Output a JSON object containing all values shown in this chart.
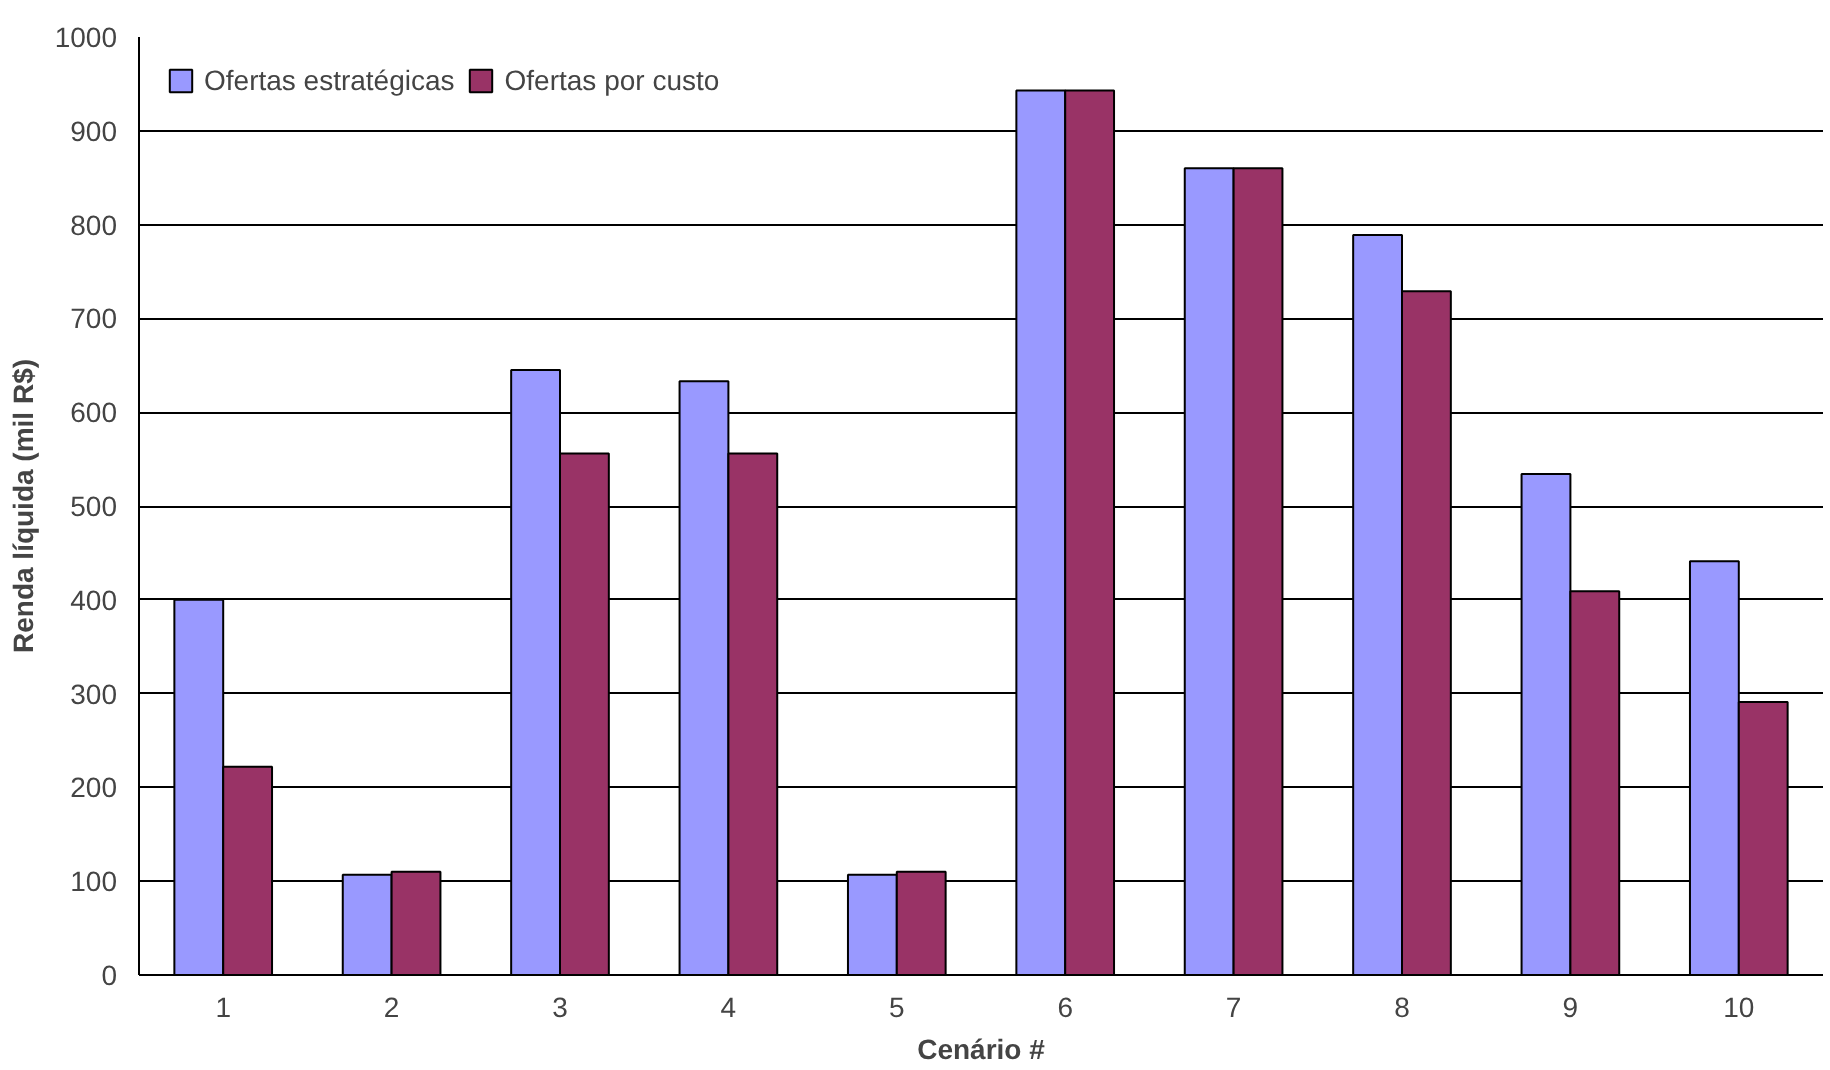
{
  "chart_data": {
    "type": "bar",
    "xlabel": "Cenário #",
    "ylabel": "Renda líquida (mil R$)",
    "categories": [
      "1",
      "2",
      "3",
      "4",
      "5",
      "6",
      "7",
      "8",
      "9",
      "10"
    ],
    "series": [
      {
        "name": "Ofertas estratégicas",
        "color": "#9999ff",
        "values": [
          400,
          107,
          645,
          633,
          107,
          943,
          860,
          789,
          534,
          441
        ]
      },
      {
        "name": "Ofertas por custo",
        "color": "#993366",
        "values": [
          222,
          110,
          556,
          556,
          110,
          943,
          860,
          729,
          409,
          291
        ]
      }
    ],
    "ylim": [
      0,
      1000
    ],
    "yticks": [
      0,
      100,
      200,
      300,
      400,
      500,
      600,
      700,
      800,
      900,
      1000
    ],
    "grid": "y",
    "legend": "top left"
  }
}
